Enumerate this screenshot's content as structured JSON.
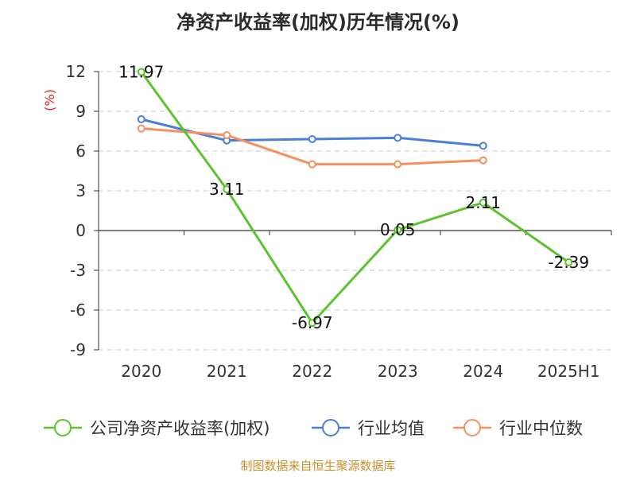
{
  "chart_data": {
    "type": "line",
    "title": "净资产收益率(加权)历年情况(%)",
    "ylabel": "(%)",
    "categories": [
      "2020",
      "2021",
      "2022",
      "2023",
      "2024",
      "2025H1"
    ],
    "y_ticks": [
      "12",
      "9",
      "6",
      "3",
      "0",
      "-3",
      "-6",
      "-9"
    ],
    "ylim": [
      -9,
      12
    ],
    "grid": "horizontal dashed",
    "legend_position": "bottom",
    "series": [
      {
        "name": "公司净资产收益率(加权)",
        "color": "#5cc22d",
        "values": [
          11.97,
          3.11,
          -6.97,
          0.05,
          2.11,
          -2.39
        ],
        "labels": [
          "11.97",
          "3.11",
          "-6.97",
          "0.05",
          "2.11",
          "-2.39"
        ]
      },
      {
        "name": "行业均值",
        "color": "#4a7fd8",
        "values": [
          8.4,
          6.8,
          6.9,
          7.0,
          6.4,
          null
        ]
      },
      {
        "name": "行业中位数",
        "color": "#f59160",
        "values": [
          7.7,
          7.2,
          5.0,
          5.0,
          5.3,
          null
        ]
      }
    ],
    "source": "制图数据来自恒生聚源数据库"
  }
}
